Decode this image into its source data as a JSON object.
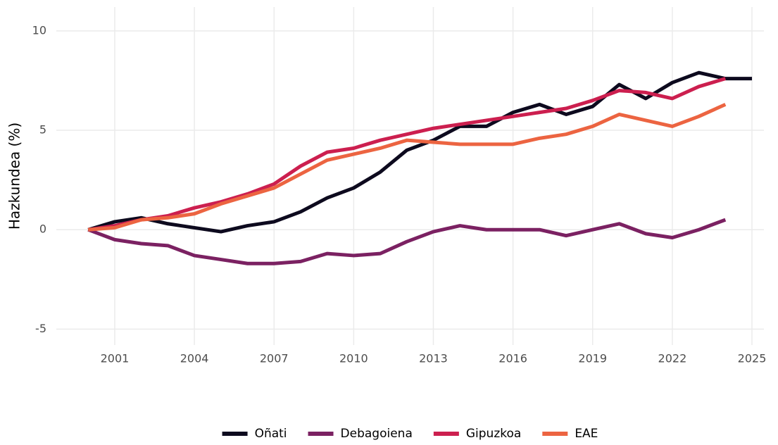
{
  "chart_data": {
    "type": "line",
    "y_label": "Hazkundea (%)",
    "x": [
      2000,
      2001,
      2002,
      2003,
      2004,
      2005,
      2006,
      2007,
      2008,
      2009,
      2010,
      2011,
      2012,
      2013,
      2014,
      2015,
      2016,
      2017,
      2018,
      2019,
      2020,
      2021,
      2022,
      2023,
      2024,
      2025
    ],
    "series": [
      {
        "name": "Oñati",
        "color": "#0d0a1e",
        "values": [
          0,
          0.4,
          0.6,
          0.3,
          0.1,
          -0.1,
          0.2,
          0.4,
          0.9,
          1.6,
          2.1,
          2.9,
          4.0,
          4.5,
          5.2,
          5.2,
          5.9,
          6.3,
          5.8,
          6.2,
          7.3,
          6.6,
          7.4,
          7.9,
          7.6,
          7.6
        ]
      },
      {
        "name": "Debagoiena",
        "color": "#7b2162",
        "values": [
          0,
          -0.5,
          -0.7,
          -0.8,
          -1.3,
          -1.5,
          -1.7,
          -1.7,
          -1.6,
          -1.2,
          -1.3,
          -1.2,
          -0.6,
          -0.1,
          0.2,
          0,
          0,
          0,
          -0.3,
          0,
          0.3,
          -0.2,
          -0.4,
          0,
          0.5,
          null
        ]
      },
      {
        "name": "Gipuzkoa",
        "color": "#cc1f4f",
        "values": [
          0,
          0.2,
          0.5,
          0.7,
          1.1,
          1.4,
          1.8,
          2.3,
          3.2,
          3.9,
          4.1,
          4.5,
          4.8,
          5.1,
          5.3,
          5.5,
          5.7,
          5.9,
          6.1,
          6.5,
          7.0,
          6.9,
          6.6,
          7.2,
          7.6,
          null
        ]
      },
      {
        "name": "EAE",
        "color": "#ec6441",
        "values": [
          0,
          0.1,
          0.5,
          0.6,
          0.8,
          1.3,
          1.7,
          2.1,
          2.8,
          3.5,
          3.8,
          4.1,
          4.5,
          4.4,
          4.3,
          4.3,
          4.3,
          4.6,
          4.8,
          5.2,
          5.8,
          5.5,
          5.2,
          5.7,
          6.3,
          null
        ]
      }
    ],
    "xlim": [
      1998.8,
      2025.45
    ],
    "xticks": [
      2001,
      2004,
      2007,
      2010,
      2013,
      2016,
      2019,
      2022,
      2025
    ],
    "ylim": [
      -5.8,
      11.2
    ],
    "yticks": [
      -5,
      0,
      5,
      10
    ],
    "grid": true,
    "legend": "bottom"
  }
}
